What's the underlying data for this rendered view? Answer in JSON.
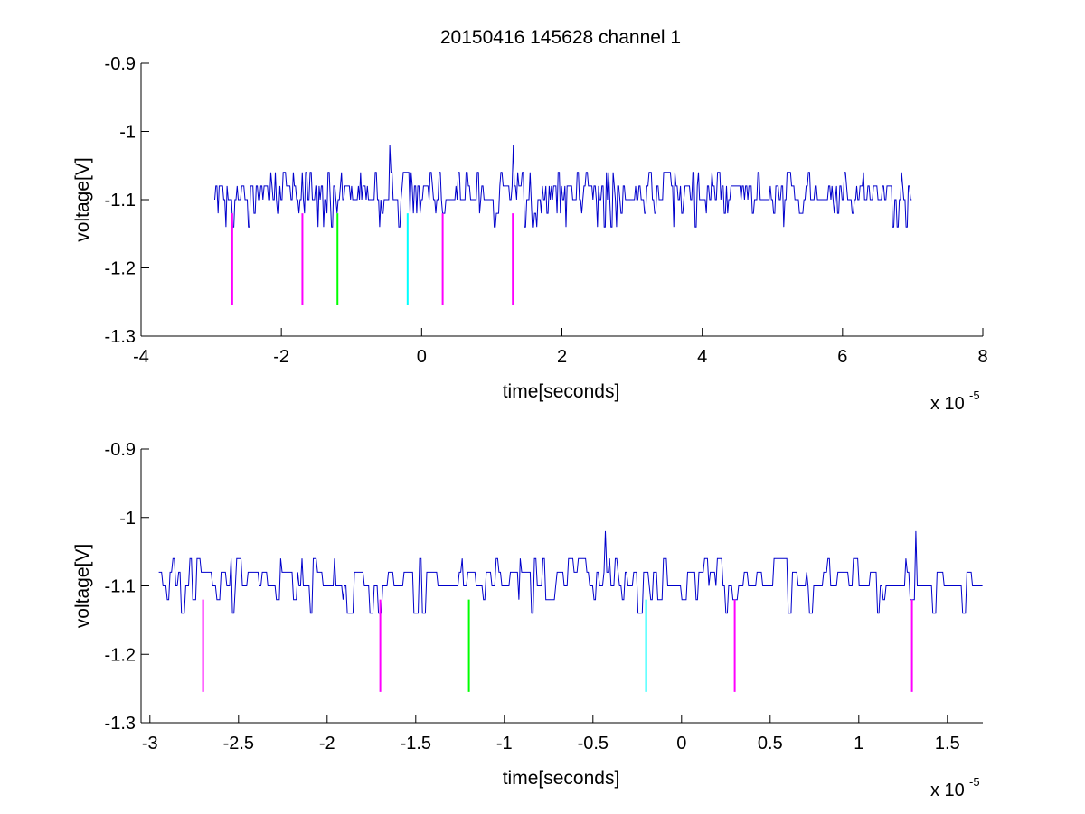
{
  "figure": {
    "title": "20150416 145628 channel 1"
  },
  "chart_data": [
    {
      "type": "line",
      "panel": "top",
      "xlabel": "time[seconds]",
      "ylabel": "voltage[V]",
      "x_exponent_label": "x 10",
      "x_exponent": "-5",
      "xlim": [
        -4,
        8
      ],
      "ylim": [
        -1.3,
        -0.9
      ],
      "xticks": [
        -4,
        -2,
        0,
        2,
        4,
        6,
        8
      ],
      "xtick_labels": [
        "-4",
        "-2",
        "0",
        "2",
        "4",
        "6",
        "8"
      ],
      "yticks": [
        -1.3,
        -1.2,
        -1.1,
        -1,
        -0.9
      ],
      "ytick_labels": [
        "-1.3",
        "-1.2",
        "-1.1",
        "-1",
        "-0.9"
      ],
      "grid": false,
      "series": [
        {
          "color": "#0000cc",
          "x_range": [
            -2.95,
            7.0
          ],
          "baseline": -1.1,
          "levels": [
            -1.14,
            -1.12,
            -1.1,
            -1.08,
            -1.06
          ],
          "spikes": [
            {
              "x": -0.45,
              "y": -1.02
            },
            {
              "x": 1.3,
              "y": -1.02
            }
          ]
        }
      ],
      "markers": [
        {
          "x": -2.7,
          "y_top": -1.12,
          "y_bottom": -1.255,
          "color": "#ff00ff"
        },
        {
          "x": -1.7,
          "y_top": -1.12,
          "y_bottom": -1.255,
          "color": "#ff00ff"
        },
        {
          "x": -1.2,
          "y_top": -1.12,
          "y_bottom": -1.255,
          "color": "#00ff00"
        },
        {
          "x": -0.2,
          "y_top": -1.12,
          "y_bottom": -1.255,
          "color": "#00ffff"
        },
        {
          "x": 0.3,
          "y_top": -1.12,
          "y_bottom": -1.255,
          "color": "#ff00ff"
        },
        {
          "x": 1.3,
          "y_top": -1.12,
          "y_bottom": -1.255,
          "color": "#ff00ff"
        }
      ]
    },
    {
      "type": "line",
      "panel": "bottom",
      "xlabel": "time[seconds]",
      "ylabel": "voltage[V]",
      "x_exponent_label": "x 10",
      "x_exponent": "-5",
      "xlim": [
        -3.05,
        1.7
      ],
      "ylim": [
        -1.3,
        -0.9
      ],
      "xticks": [
        -3,
        -2.5,
        -2,
        -1.5,
        -1,
        -0.5,
        0,
        0.5,
        1,
        1.5
      ],
      "xtick_labels": [
        "-3",
        "-2.5",
        "-2",
        "-1.5",
        "-1",
        "-0.5",
        "0",
        "0.5",
        "1",
        "1.5"
      ],
      "yticks": [
        -1.3,
        -1.2,
        -1.1,
        -1,
        -0.9
      ],
      "ytick_labels": [
        "-1.3",
        "-1.2",
        "-1.1",
        "-1",
        "-0.9"
      ],
      "grid": false,
      "series": [
        {
          "color": "#0000cc",
          "x_range": [
            -2.95,
            1.7
          ],
          "baseline": -1.1,
          "levels": [
            -1.14,
            -1.12,
            -1.1,
            -1.08,
            -1.06
          ],
          "spikes": [
            {
              "x": -0.43,
              "y": -1.02
            },
            {
              "x": 1.32,
              "y": -1.02
            }
          ]
        }
      ],
      "markers": [
        {
          "x": -2.7,
          "y_top": -1.12,
          "y_bottom": -1.255,
          "color": "#ff00ff"
        },
        {
          "x": -1.7,
          "y_top": -1.12,
          "y_bottom": -1.255,
          "color": "#ff00ff"
        },
        {
          "x": -1.2,
          "y_top": -1.12,
          "y_bottom": -1.255,
          "color": "#00ff00"
        },
        {
          "x": -0.2,
          "y_top": -1.12,
          "y_bottom": -1.255,
          "color": "#00ffff"
        },
        {
          "x": 0.3,
          "y_top": -1.12,
          "y_bottom": -1.255,
          "color": "#ff00ff"
        },
        {
          "x": 1.3,
          "y_top": -1.12,
          "y_bottom": -1.255,
          "color": "#ff00ff"
        }
      ]
    }
  ]
}
